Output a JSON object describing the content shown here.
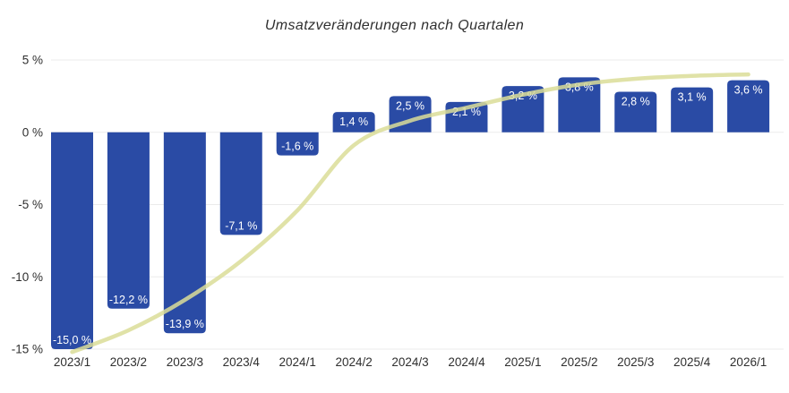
{
  "chart_data": {
    "type": "bar",
    "title": "Umsatzveränderungen nach Quartalen",
    "categories": [
      "2023/1",
      "2023/2",
      "2023/3",
      "2023/4",
      "2024/1",
      "2024/2",
      "2024/3",
      "2024/4",
      "2025/1",
      "2025/2",
      "2025/3",
      "2025/4",
      "2026/1"
    ],
    "values": [
      -15.0,
      -12.2,
      -13.9,
      -7.1,
      -1.6,
      1.4,
      2.5,
      2.1,
      3.2,
      3.8,
      2.8,
      3.1,
      3.6
    ],
    "value_labels": [
      "-15,0 %",
      "-12,2 %",
      "-13,9 %",
      "-7,1 %",
      "-1,6 %",
      "1,4 %",
      "2,5 %",
      "2,1 %",
      "3,2 %",
      "3,8 %",
      "2,8 %",
      "3,1 %",
      "3,6 %"
    ],
    "trend_line": {
      "description": "smooth s-curve overlay, values estimated at each category center",
      "values": [
        -15.2,
        -13.7,
        -11.6,
        -8.9,
        -5.4,
        -0.9,
        0.8,
        1.7,
        2.6,
        3.3,
        3.7,
        3.9,
        4.0
      ]
    },
    "y_axis": {
      "tick_values": [
        5,
        0,
        -5,
        -10,
        -15
      ],
      "tick_labels": [
        "5 %",
        "0 %",
        "-5 %",
        "-10 %",
        "-15 %"
      ],
      "ylim": [
        -15,
        5
      ]
    },
    "grid": "horizontal-only",
    "legend": "none",
    "colors": {
      "bar": "#2A4BA5",
      "trend_line": "#DBDD98",
      "gridline": "#EBEBEB",
      "bar_label": "#FFFFFF",
      "axis_text": "#2F2F2F",
      "title_text": "#2F2F2F"
    }
  }
}
